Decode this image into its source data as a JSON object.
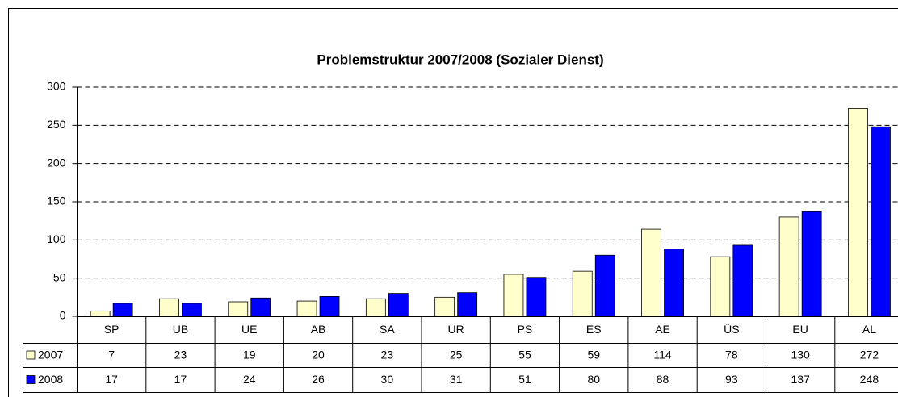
{
  "chart_data": {
    "type": "bar",
    "title": "Problemstruktur 2007/2008 (Sozialer Dienst)",
    "categories": [
      "SP",
      "UB",
      "UE",
      "AB",
      "SA",
      "UR",
      "PS",
      "ES",
      "AE",
      "ÜS",
      "EU",
      "AL"
    ],
    "series": [
      {
        "name": "2007",
        "color": "#ffffcc",
        "values": [
          7,
          23,
          19,
          20,
          23,
          25,
          55,
          59,
          114,
          78,
          130,
          272
        ]
      },
      {
        "name": "2008",
        "color": "#0000ff",
        "values": [
          17,
          17,
          24,
          26,
          30,
          31,
          51,
          80,
          88,
          93,
          137,
          248
        ]
      }
    ],
    "ylim": [
      0,
      300
    ],
    "yticks": [
      0,
      50,
      100,
      150,
      200,
      250,
      300
    ],
    "grid": true,
    "data_table": true
  }
}
